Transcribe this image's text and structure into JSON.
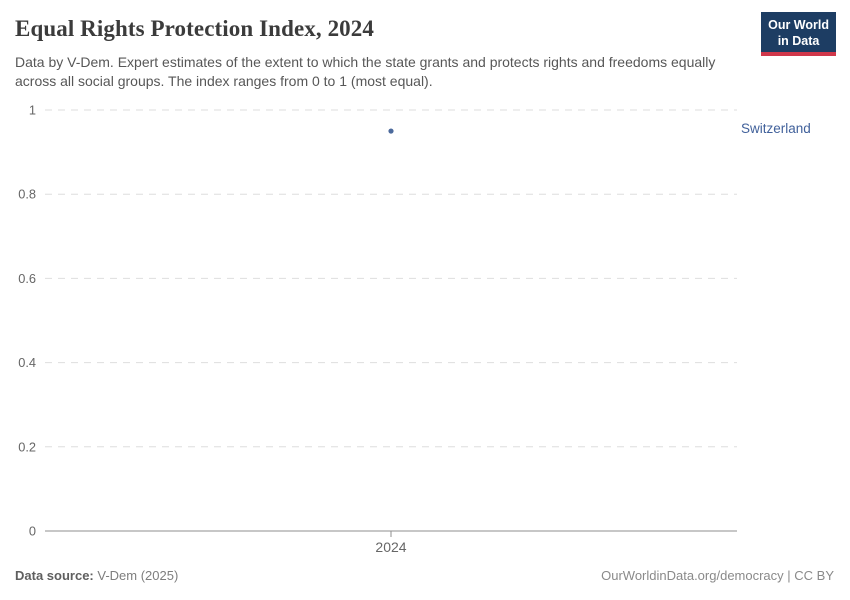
{
  "header": {
    "title": "Equal Rights Protection Index, 2024",
    "subtitle": "Data by V-Dem. Expert estimates of the extent to which the state grants and protects rights and freedoms equally across all social groups. The index ranges from 0 to 1 (most equal).",
    "logo_line1": "Our World",
    "logo_line2": "in Data"
  },
  "chart_data": {
    "type": "scatter",
    "title": "Equal Rights Protection Index, 2024",
    "x": [
      2024
    ],
    "xtick_labels": [
      "2024"
    ],
    "series": [
      {
        "name": "Switzerland",
        "values": [
          0.95
        ],
        "color": "#4c6a9c"
      }
    ],
    "xlabel": "",
    "ylabel": "",
    "ylim": [
      0,
      1
    ],
    "yticks": [
      0,
      0.2,
      0.4,
      0.6,
      0.8,
      1
    ],
    "ytick_labels": [
      "0",
      "0.2",
      "0.4",
      "0.6",
      "0.8",
      "1"
    ],
    "grid": "horizontal-dashed",
    "legend_position": "entity label right of point",
    "annotations": [
      "Switzerland"
    ]
  },
  "footer": {
    "source_label": "Data source:",
    "source_value": " V-Dem (2025)",
    "credit": "OurWorldinData.org/democracy | CC BY"
  },
  "colors": {
    "accent_point": "#4c6a9c",
    "grid_dashed": "#dedede",
    "axis_line": "#8f8f8f",
    "logo_bg": "#1d3d63",
    "logo_red": "#d0374a",
    "title_text": "#3b3b3b",
    "subtitle_text": "#575757",
    "tick_text": "#666666"
  }
}
